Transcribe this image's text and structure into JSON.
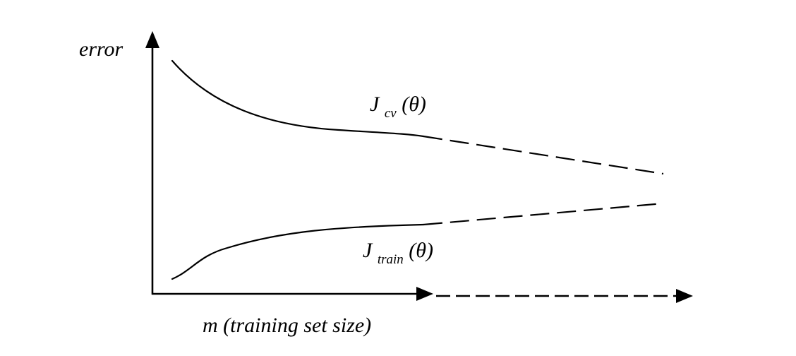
{
  "labels": {
    "y_axis": "error",
    "x_axis": "m (training set size)",
    "cv_curve_main": "J",
    "cv_curve_sub": "cv",
    "cv_curve_arg": "(θ)",
    "train_curve_main": "J",
    "train_curve_sub": "train",
    "train_curve_arg": "(θ)"
  },
  "colors": {
    "line": "#000000",
    "background": "#ffffff"
  },
  "curves": [
    {
      "name": "cv",
      "trend": "decreasing",
      "extrapolated": true
    },
    {
      "name": "train",
      "trend": "increasing",
      "extrapolated": true
    }
  ]
}
